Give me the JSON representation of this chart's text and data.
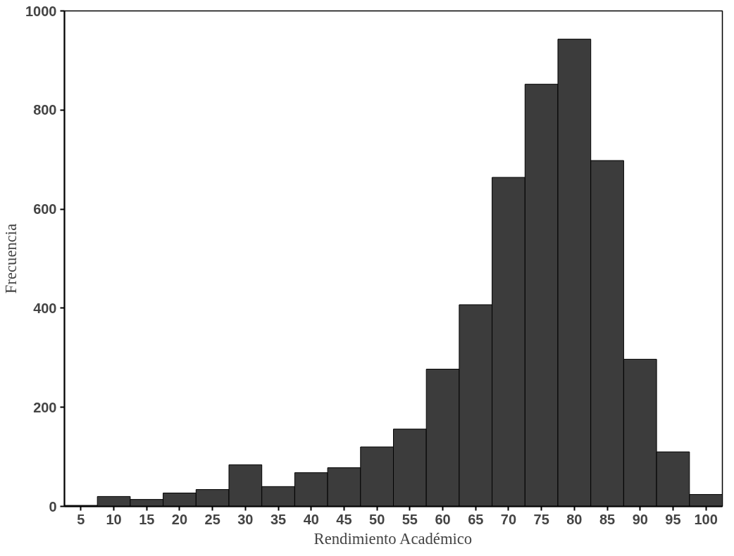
{
  "chart_data": {
    "type": "histogram",
    "xlabel": "Rendimiento Académico",
    "ylabel": "Frecuencia",
    "bins": [
      2.5,
      7.5,
      12.5,
      17.5,
      22.5,
      27.5,
      32.5,
      37.5,
      42.5,
      47.5,
      52.5,
      57.5,
      62.5,
      67.5,
      72.5,
      77.5,
      82.5,
      87.5,
      92.5,
      97.5,
      102.5
    ],
    "values": [
      2,
      20,
      14,
      27,
      34,
      84,
      40,
      68,
      78,
      120,
      156,
      277,
      407,
      664,
      852,
      943,
      698,
      297,
      110,
      24
    ],
    "color": "#3c3c3c",
    "xlim": [
      2.5,
      102.5
    ],
    "ylim": [
      0,
      1000
    ],
    "xticks": [
      5,
      10,
      15,
      20,
      25,
      30,
      35,
      40,
      45,
      50,
      55,
      60,
      65,
      70,
      75,
      80,
      85,
      90,
      95,
      100
    ],
    "yticks": [
      0,
      200,
      400,
      600,
      800,
      1000
    ],
    "grid": false
  }
}
